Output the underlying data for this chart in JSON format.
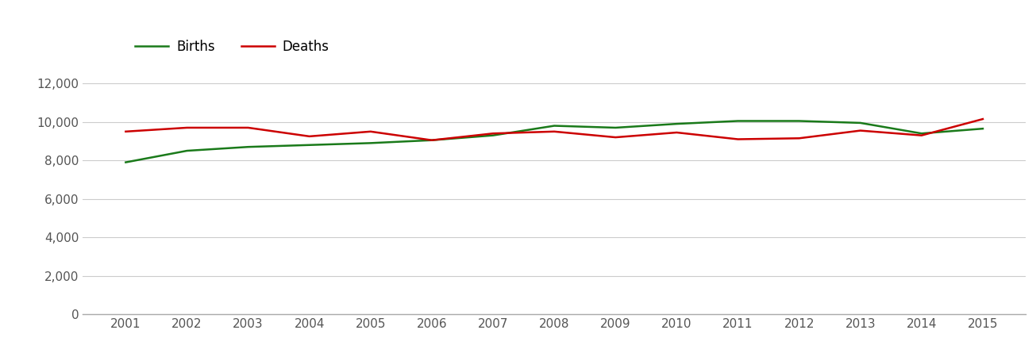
{
  "years": [
    2001,
    2002,
    2003,
    2004,
    2005,
    2006,
    2007,
    2008,
    2009,
    2010,
    2011,
    2012,
    2013,
    2014,
    2015
  ],
  "births": [
    7900,
    8500,
    8700,
    8800,
    8900,
    9050,
    9300,
    9800,
    9700,
    9900,
    10050,
    10050,
    9950,
    9400,
    9650
  ],
  "deaths": [
    9500,
    9700,
    9700,
    9250,
    9500,
    9050,
    9400,
    9500,
    9200,
    9450,
    9100,
    9150,
    9550,
    9300,
    10150
  ],
  "births_color": "#1a7a1a",
  "deaths_color": "#cc0000",
  "line_width": 1.8,
  "legend_labels": [
    "Births",
    "Deaths"
  ],
  "ylim": [
    0,
    13000
  ],
  "yticks": [
    0,
    2000,
    4000,
    6000,
    8000,
    10000,
    12000
  ],
  "background_color": "#ffffff",
  "grid_color": "#cccccc",
  "tick_label_color": "#555555",
  "tick_fontsize": 11
}
